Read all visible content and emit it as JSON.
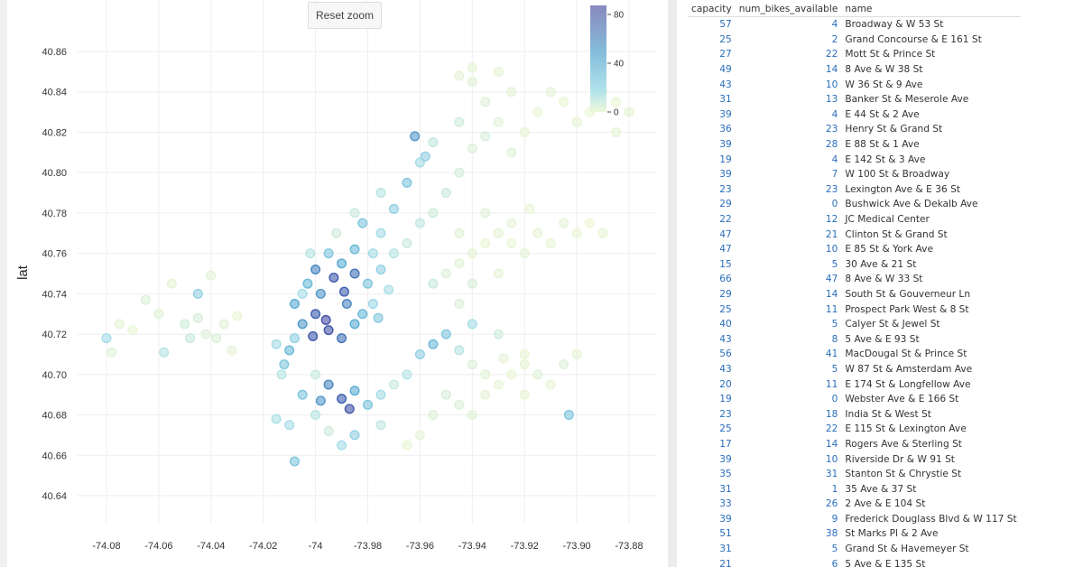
{
  "reset_zoom_label": "Reset zoom",
  "chart_data": {
    "type": "scatter",
    "xlabel": "",
    "ylabel": "lat",
    "xlim": [
      -74.09,
      -73.87
    ],
    "ylim": [
      40.63,
      40.87
    ],
    "xticks": [
      "-74.08",
      "-74.06",
      "-74.04",
      "-74.02",
      "-74",
      "-73.98",
      "-73.96",
      "-73.94",
      "-73.92",
      "-73.90",
      "-73.88"
    ],
    "yticks": [
      "40.86",
      "40.84",
      "40.82",
      "40.80",
      "40.78",
      "40.76",
      "40.74",
      "40.72",
      "40.70",
      "40.68",
      "40.66",
      "40.64"
    ],
    "grid": true,
    "color_field": "num_bikes_available",
    "colorbar": {
      "ticks": [
        "80",
        "40",
        "0"
      ],
      "range": [
        0,
        85
      ],
      "colors": [
        "#eef7d6",
        "#a6dde8",
        "#5aaed3",
        "#3d5fb0",
        "#6f72b4"
      ],
      "placement": "top-right"
    },
    "points": [
      [
        -74.012,
        40.705,
        30
      ],
      [
        -74.01,
        40.712,
        35
      ],
      [
        -74.008,
        40.718,
        25
      ],
      [
        -74.005,
        40.725,
        45
      ],
      [
        -74.0,
        40.73,
        60
      ],
      [
        -73.995,
        40.722,
        70
      ],
      [
        -73.99,
        40.718,
        55
      ],
      [
        -73.985,
        40.725,
        40
      ],
      [
        -73.988,
        40.735,
        50
      ],
      [
        -73.998,
        40.74,
        45
      ],
      [
        -74.003,
        40.745,
        35
      ],
      [
        -73.993,
        40.748,
        65
      ],
      [
        -73.985,
        40.75,
        55
      ],
      [
        -73.99,
        40.755,
        40
      ],
      [
        -73.98,
        40.745,
        30
      ],
      [
        -73.975,
        40.752,
        25
      ],
      [
        -73.978,
        40.76,
        20
      ],
      [
        -73.985,
        40.762,
        35
      ],
      [
        -73.995,
        40.76,
        30
      ],
      [
        -74.0,
        40.752,
        50
      ],
      [
        -73.97,
        40.76,
        15
      ],
      [
        -73.965,
        40.765,
        10
      ],
      [
        -73.975,
        40.77,
        20
      ],
      [
        -73.982,
        40.775,
        30
      ],
      [
        -73.96,
        40.775,
        12
      ],
      [
        -73.955,
        40.78,
        8
      ],
      [
        -73.97,
        40.782,
        25
      ],
      [
        -73.975,
        40.79,
        15
      ],
      [
        -73.95,
        40.79,
        10
      ],
      [
        -73.965,
        40.795,
        30
      ],
      [
        -73.96,
        40.805,
        20
      ],
      [
        -73.945,
        40.8,
        6
      ],
      [
        -73.955,
        40.815,
        12
      ],
      [
        -73.94,
        40.812,
        5
      ],
      [
        -73.945,
        40.825,
        8
      ],
      [
        -73.935,
        40.835,
        4
      ],
      [
        -73.94,
        40.845,
        3
      ],
      [
        -73.93,
        40.85,
        2
      ],
      [
        -73.962,
        40.818,
        45
      ],
      [
        -73.958,
        40.808,
        25
      ],
      [
        -74.015,
        40.715,
        20
      ],
      [
        -74.013,
        40.7,
        15
      ],
      [
        -73.978,
        40.735,
        22
      ],
      [
        -73.972,
        40.742,
        18
      ],
      [
        -73.982,
        40.73,
        35
      ],
      [
        -73.976,
        40.728,
        28
      ],
      [
        -74.005,
        40.69,
        30
      ],
      [
        -73.995,
        40.695,
        50
      ],
      [
        -73.99,
        40.688,
        60
      ],
      [
        -73.985,
        40.692,
        40
      ],
      [
        -73.98,
        40.685,
        30
      ],
      [
        -73.975,
        40.69,
        20
      ],
      [
        -73.97,
        40.695,
        10
      ],
      [
        -73.965,
        40.7,
        15
      ],
      [
        -73.96,
        40.71,
        25
      ],
      [
        -73.955,
        40.715,
        35
      ],
      [
        -73.95,
        40.72,
        30
      ],
      [
        -73.945,
        40.712,
        15
      ],
      [
        -73.94,
        40.705,
        5
      ],
      [
        -73.935,
        40.7,
        3
      ],
      [
        -73.93,
        40.695,
        2
      ],
      [
        -73.925,
        40.7,
        1
      ],
      [
        -73.92,
        40.705,
        2
      ],
      [
        -73.915,
        40.7,
        3
      ],
      [
        -73.91,
        40.695,
        1
      ],
      [
        -73.905,
        40.705,
        4
      ],
      [
        -73.9,
        40.71,
        2
      ],
      [
        -73.95,
        40.69,
        6
      ],
      [
        -73.955,
        40.68,
        4
      ],
      [
        -73.96,
        40.67,
        2
      ],
      [
        -73.965,
        40.665,
        1
      ],
      [
        -73.975,
        40.675,
        12
      ],
      [
        -73.985,
        40.67,
        25
      ],
      [
        -73.99,
        40.665,
        20
      ],
      [
        -73.995,
        40.672,
        8
      ],
      [
        -74.0,
        40.68,
        15
      ],
      [
        -74.01,
        40.675,
        20
      ],
      [
        -74.015,
        40.678,
        18
      ],
      [
        -74.008,
        40.657,
        30
      ],
      [
        -74.0,
        40.7,
        10
      ],
      [
        -73.945,
        40.685,
        5
      ],
      [
        -73.94,
        40.68,
        3
      ],
      [
        -73.935,
        40.69,
        2
      ],
      [
        -73.92,
        40.69,
        1
      ],
      [
        -73.93,
        40.72,
        8
      ],
      [
        -73.94,
        40.725,
        20
      ],
      [
        -73.945,
        40.735,
        5
      ],
      [
        -73.903,
        40.68,
        30
      ],
      [
        -73.92,
        40.71,
        1
      ],
      [
        -73.928,
        40.708,
        2
      ],
      [
        -73.955,
        40.745,
        10
      ],
      [
        -73.95,
        40.75,
        4
      ],
      [
        -73.945,
        40.755,
        3
      ],
      [
        -73.94,
        40.76,
        2
      ],
      [
        -73.935,
        40.765,
        1
      ],
      [
        -73.93,
        40.77,
        2
      ],
      [
        -73.925,
        40.765,
        1
      ],
      [
        -73.92,
        40.76,
        3
      ],
      [
        -73.915,
        40.77,
        2
      ],
      [
        -73.91,
        40.765,
        1
      ],
      [
        -73.905,
        40.775,
        2
      ],
      [
        -73.9,
        40.77,
        1
      ],
      [
        -73.895,
        40.775,
        0
      ],
      [
        -73.89,
        40.77,
        1
      ],
      [
        -73.945,
        40.77,
        3
      ],
      [
        -73.935,
        40.78,
        4
      ],
      [
        -73.925,
        40.775,
        2
      ],
      [
        -73.918,
        40.782,
        1
      ],
      [
        -73.94,
        40.745,
        6
      ],
      [
        -73.93,
        40.75,
        2
      ],
      [
        -73.925,
        40.81,
        3
      ],
      [
        -73.92,
        40.82,
        2
      ],
      [
        -73.915,
        40.83,
        1
      ],
      [
        -73.91,
        40.84,
        2
      ],
      [
        -73.905,
        40.835,
        1
      ],
      [
        -73.9,
        40.825,
        2
      ],
      [
        -73.895,
        40.83,
        1
      ],
      [
        -73.89,
        40.84,
        0
      ],
      [
        -73.885,
        40.835,
        1
      ],
      [
        -73.88,
        40.83,
        2
      ],
      [
        -73.93,
        40.825,
        3
      ],
      [
        -73.925,
        40.84,
        2
      ],
      [
        -73.935,
        40.818,
        6
      ],
      [
        -73.885,
        40.82,
        2
      ],
      [
        -73.94,
        40.852,
        1
      ],
      [
        -73.945,
        40.848,
        2
      ],
      [
        -74.08,
        40.718,
        20
      ],
      [
        -74.075,
        40.725,
        2
      ],
      [
        -74.07,
        40.722,
        1
      ],
      [
        -74.065,
        40.737,
        5
      ],
      [
        -74.06,
        40.73,
        3
      ],
      [
        -74.055,
        40.745,
        2
      ],
      [
        -74.05,
        40.725,
        8
      ],
      [
        -74.048,
        40.718,
        10
      ],
      [
        -74.045,
        40.728,
        6
      ],
      [
        -74.042,
        40.72,
        4
      ],
      [
        -74.04,
        40.749,
        3
      ],
      [
        -74.038,
        40.718,
        5
      ],
      [
        -74.035,
        40.725,
        3
      ],
      [
        -74.032,
        40.712,
        2
      ],
      [
        -74.03,
        40.729,
        1
      ],
      [
        -74.078,
        40.711,
        3
      ],
      [
        -74.058,
        40.711,
        15
      ],
      [
        -74.045,
        40.74,
        25
      ],
      [
        -74.008,
        40.735,
        40
      ],
      [
        -74.005,
        40.74,
        20
      ],
      [
        -74.002,
        40.76,
        15
      ],
      [
        -73.992,
        40.77,
        8
      ],
      [
        -73.985,
        40.78,
        10
      ],
      [
        -73.996,
        40.727,
        75
      ],
      [
        -74.001,
        40.719,
        65
      ],
      [
        -73.989,
        40.741,
        60
      ],
      [
        -73.987,
        40.683,
        70
      ],
      [
        -73.998,
        40.687,
        45
      ]
    ]
  },
  "table": {
    "headers": [
      "capacity",
      "num_bikes_available",
      "name"
    ],
    "rows": [
      [
        "57",
        "4",
        "Broadway & W 53 St"
      ],
      [
        "25",
        "2",
        "Grand Concourse & E 161 St"
      ],
      [
        "27",
        "22",
        "Mott St & Prince St"
      ],
      [
        "49",
        "14",
        "8 Ave & W 38 St"
      ],
      [
        "43",
        "10",
        "W 36 St & 9 Ave"
      ],
      [
        "31",
        "13",
        "Banker St & Meserole Ave"
      ],
      [
        "39",
        "4",
        "E 44 St & 2 Ave"
      ],
      [
        "36",
        "23",
        "Henry St & Grand St"
      ],
      [
        "39",
        "28",
        "E 88 St & 1 Ave"
      ],
      [
        "19",
        "4",
        "E 142 St & 3 Ave"
      ],
      [
        "39",
        "7",
        "W 100 St & Broadway"
      ],
      [
        "23",
        "23",
        "Lexington Ave & E 36 St"
      ],
      [
        "29",
        "0",
        "Bushwick Ave & Dekalb Ave"
      ],
      [
        "22",
        "12",
        "JC Medical Center"
      ],
      [
        "47",
        "21",
        "Clinton St & Grand St"
      ],
      [
        "47",
        "10",
        "E 85 St & York Ave"
      ],
      [
        "15",
        "5",
        "30 Ave & 21 St"
      ],
      [
        "66",
        "47",
        "8 Ave & W 33 St"
      ],
      [
        "29",
        "14",
        "South St & Gouverneur Ln"
      ],
      [
        "25",
        "11",
        "Prospect Park West & 8 St"
      ],
      [
        "40",
        "5",
        "Calyer St & Jewel St"
      ],
      [
        "43",
        "8",
        "5 Ave & E 93 St"
      ],
      [
        "56",
        "41",
        "MacDougal St & Prince St"
      ],
      [
        "43",
        "5",
        "W 87 St & Amsterdam Ave"
      ],
      [
        "20",
        "11",
        "E 174 St & Longfellow Ave"
      ],
      [
        "19",
        "0",
        "Webster Ave & E 166 St"
      ],
      [
        "23",
        "18",
        "India St & West St"
      ],
      [
        "25",
        "22",
        "E 115 St & Lexington Ave"
      ],
      [
        "17",
        "14",
        "Rogers Ave & Sterling St"
      ],
      [
        "39",
        "10",
        "Riverside Dr & W 91 St"
      ],
      [
        "35",
        "31",
        "Stanton St & Chrystie St"
      ],
      [
        "31",
        "1",
        "35 Ave & 37 St"
      ],
      [
        "33",
        "26",
        "2 Ave & E 104 St"
      ],
      [
        "39",
        "9",
        "Frederick Douglass Blvd & W 117 St"
      ],
      [
        "51",
        "38",
        "St Marks Pl & 2 Ave"
      ],
      [
        "31",
        "5",
        "Grand St & Havemeyer St"
      ],
      [
        "21",
        "6",
        "5 Ave & E 135 St"
      ]
    ]
  }
}
